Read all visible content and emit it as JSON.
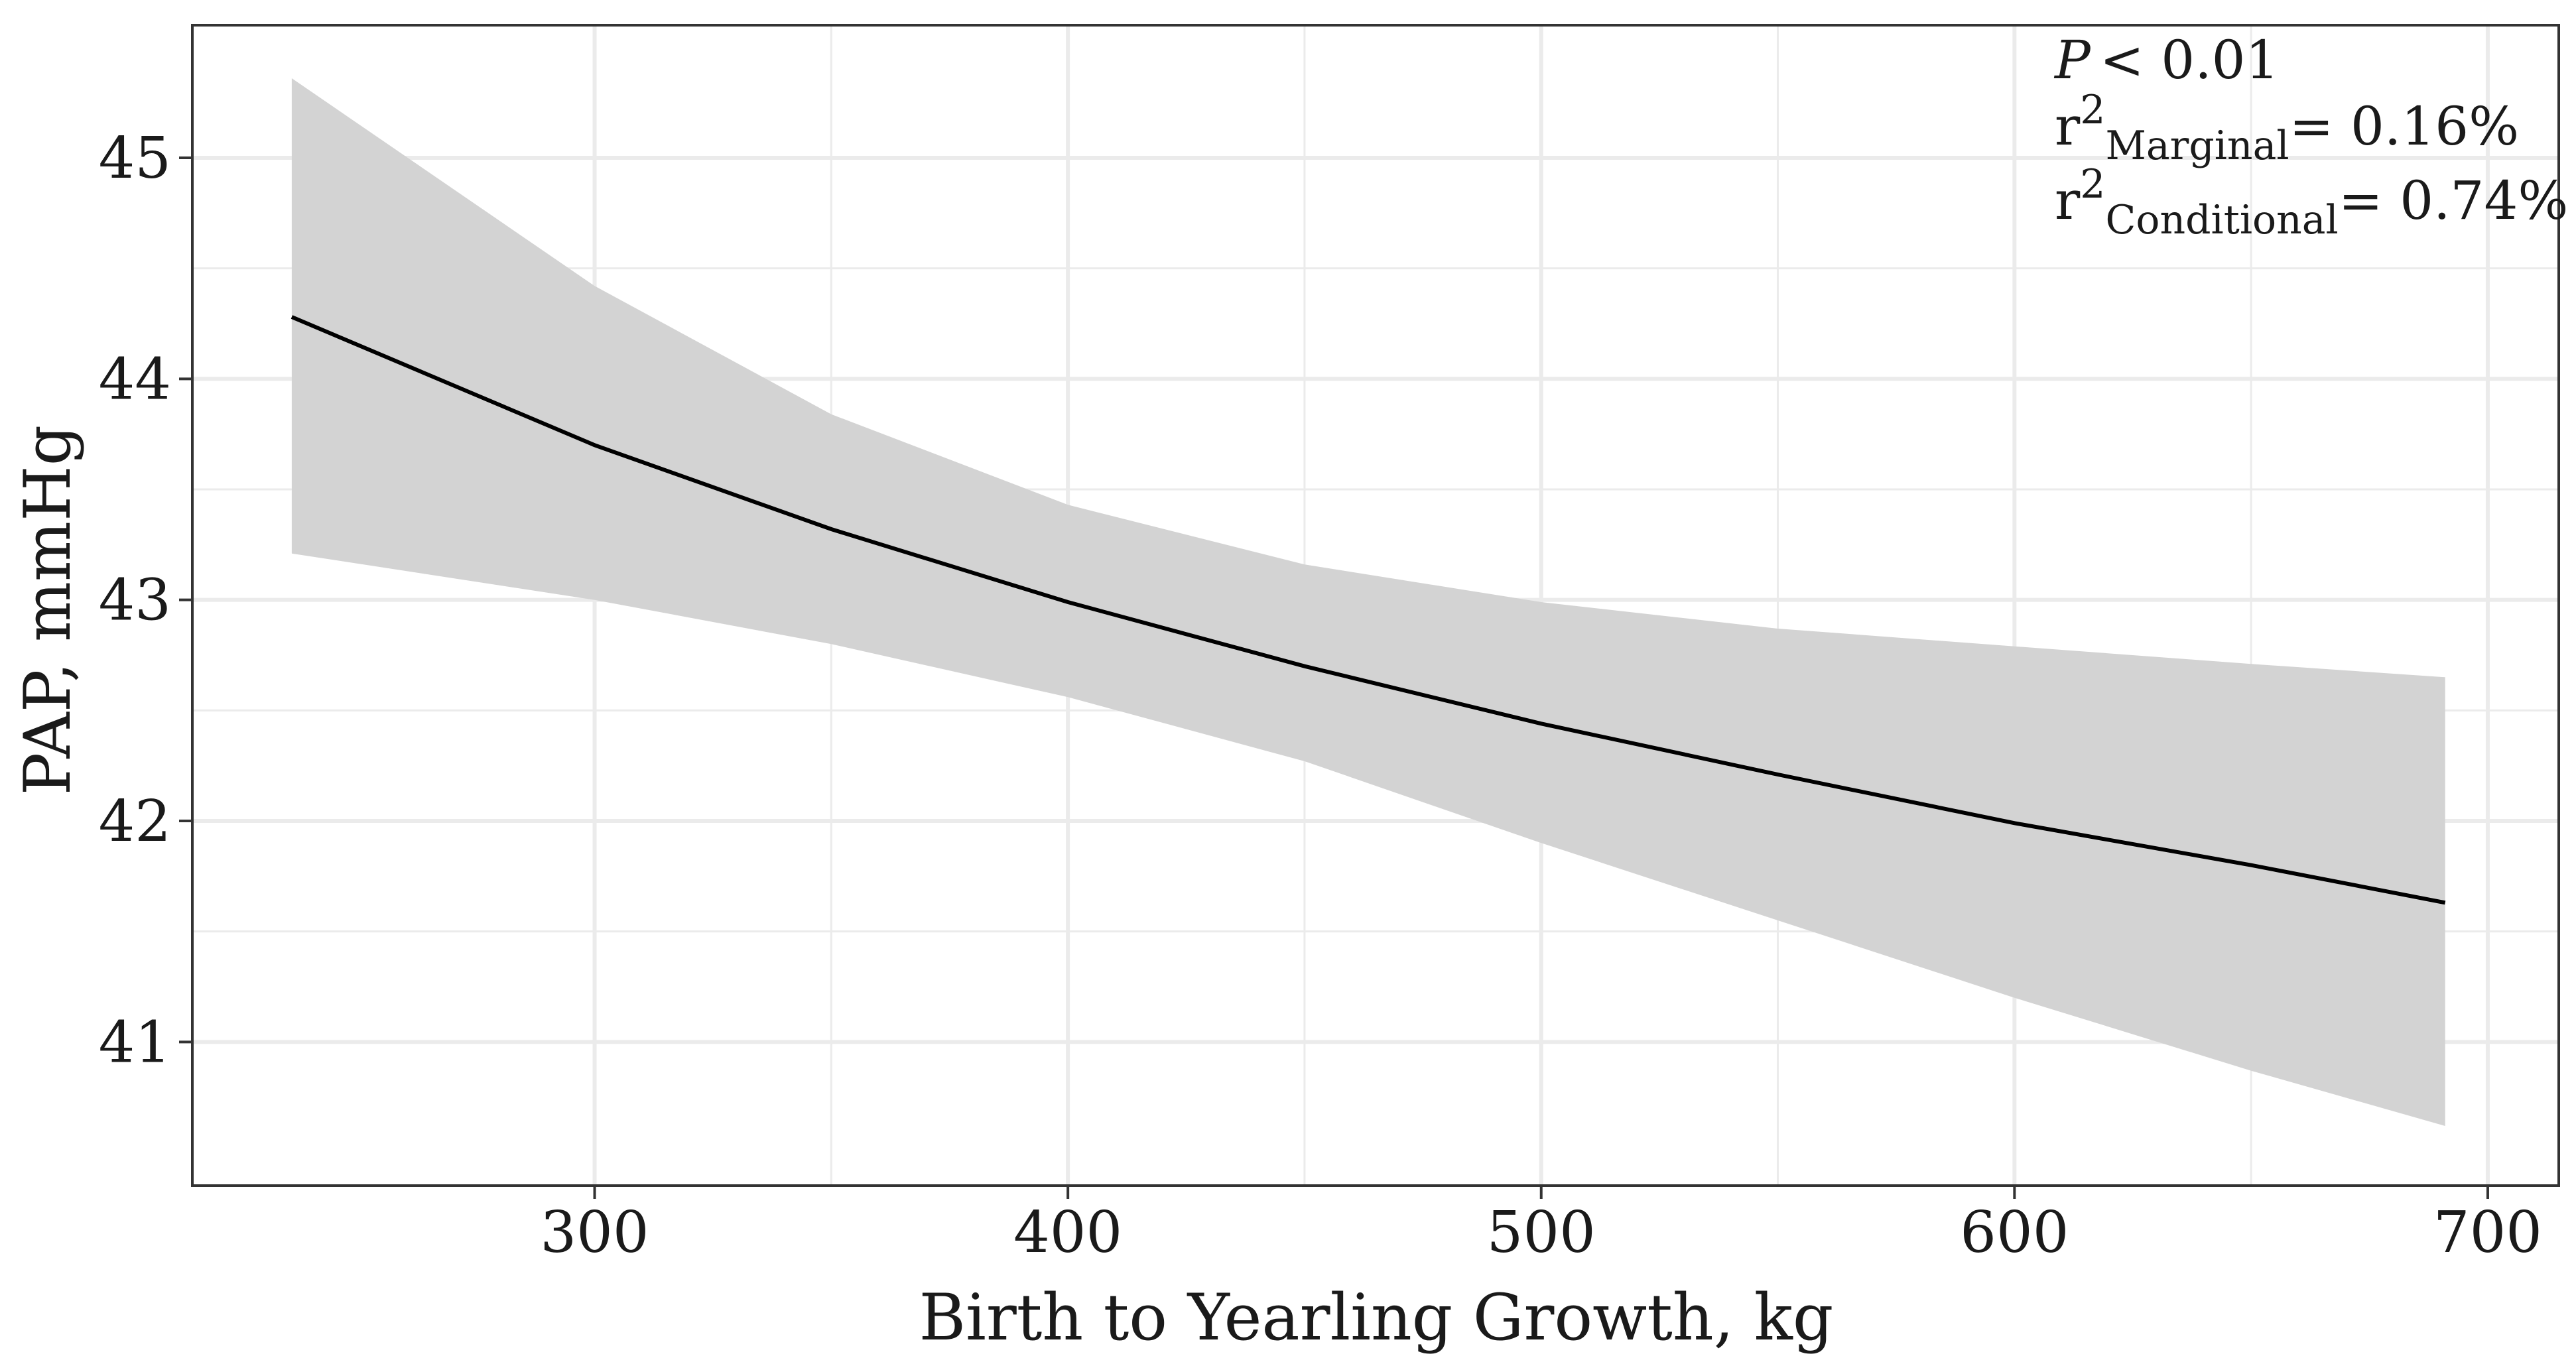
{
  "chart_data": {
    "type": "line",
    "xlabel": "Birth to Yearling Growth, kg",
    "ylabel": "PAP, mmHg",
    "xlim": [
      215,
      715
    ],
    "ylim": [
      40.35,
      45.6
    ],
    "xticks": [
      300,
      400,
      500,
      600,
      700
    ],
    "yticks": [
      41,
      42,
      43,
      44,
      45
    ],
    "grid": true,
    "series": [
      {
        "x": [
          236,
          300,
          350,
          400,
          450,
          500,
          550,
          600,
          650,
          691
        ],
        "y": [
          44.28,
          43.7,
          43.32,
          42.99,
          42.7,
          42.44,
          42.21,
          41.99,
          41.8,
          41.63
        ],
        "ci_lower": [
          43.21,
          43.0,
          42.8,
          42.56,
          42.27,
          41.9,
          41.55,
          41.2,
          40.87,
          40.62
        ],
        "ci_upper": [
          45.36,
          44.42,
          43.84,
          43.43,
          43.16,
          42.99,
          42.87,
          42.79,
          42.71,
          42.65
        ]
      }
    ],
    "annotations": {
      "p_label": "P",
      "p_value": "< 0.01",
      "r2_marginal": {
        "base": "r",
        "sup": "2",
        "sub": "Marginal",
        "value": "= 0.16%"
      },
      "r2_conditional": {
        "base": "r",
        "sup": "2",
        "sub": "Conditional",
        "value": "= 0.74%"
      }
    }
  }
}
